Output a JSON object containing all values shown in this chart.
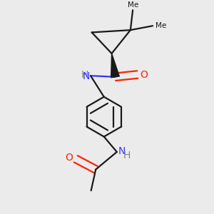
{
  "bg_color": "#ebebeb",
  "bond_color": "#1a1a1a",
  "N_color": "#3333ff",
  "O_color": "#ff2200",
  "H_color": "#888888",
  "line_width": 1.6,
  "font_size": 10,
  "figsize": [
    3.0,
    3.0
  ],
  "dpi": 100,
  "xlim": [
    0.15,
    0.85
  ],
  "ylim": [
    0.05,
    0.95
  ]
}
